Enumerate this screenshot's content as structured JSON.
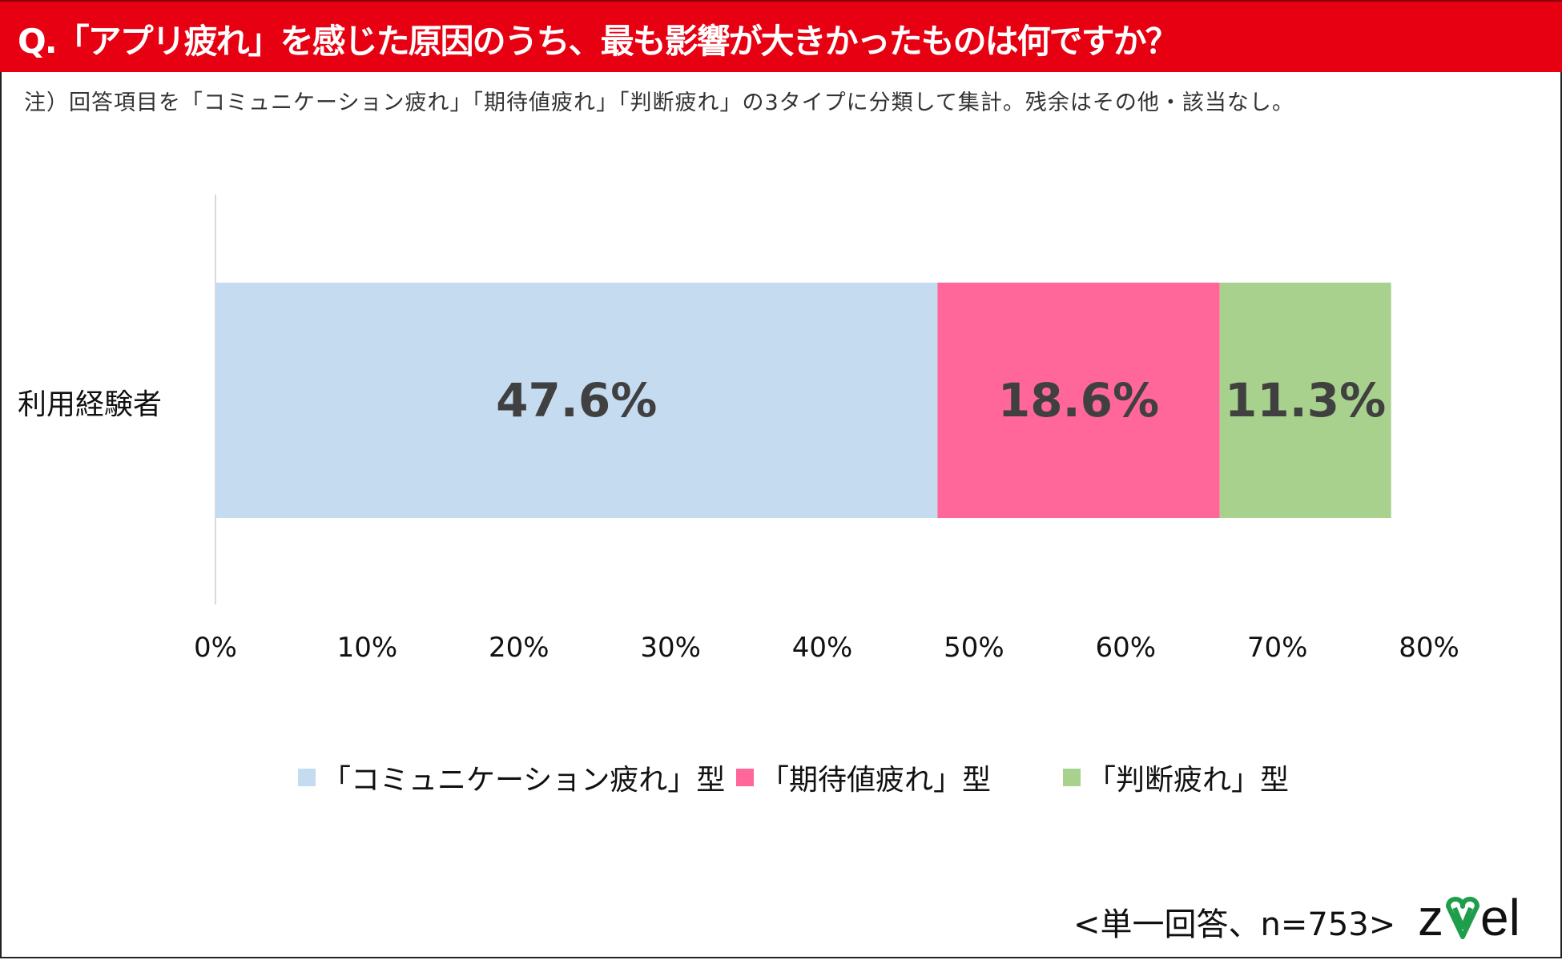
{
  "header": {
    "title": "Q.「アプリ疲れ」を感じた原因のうち、最も影響が大きかったものは何ですか？"
  },
  "note": "注）回答項目を「コミュニケーション疲れ」「期待値疲れ」「判断疲れ」の3タイプに分類して集計。残余はその他・該当なし。",
  "chart_data": {
    "type": "bar",
    "orientation": "horizontal-stacked",
    "categories": [
      "利用経験者"
    ],
    "series": [
      {
        "name": "「コミュニケーション疲れ」型",
        "values": [
          47.6
        ],
        "label": "47.6%",
        "color": "#c5dbef"
      },
      {
        "name": "「期待値疲れ」型",
        "values": [
          18.6
        ],
        "label": "18.6%",
        "color": "#ff6699"
      },
      {
        "name": "「判断疲れ」型",
        "values": [
          11.3
        ],
        "label": "11.3%",
        "color": "#a9d18e"
      }
    ],
    "xlim": [
      0,
      80
    ],
    "xticks": [
      "0%",
      "10%",
      "20%",
      "30%",
      "40%",
      "50%",
      "60%",
      "70%",
      "80%"
    ],
    "grid": false,
    "legend_position": "bottom"
  },
  "footer": {
    "sample": "<単一回答、n=753>",
    "logo_text": "zwei"
  },
  "colors": {
    "title_bg": "#e60012",
    "label_text": "#404040",
    "logo_green": "#1e9e4a"
  }
}
